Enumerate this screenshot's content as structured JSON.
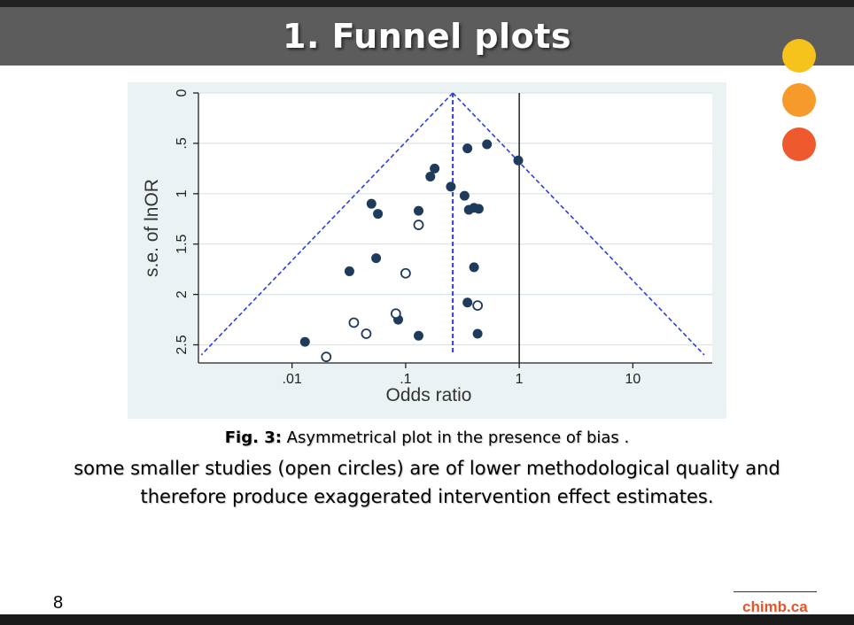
{
  "slide": {
    "title": "1. Funnel plots",
    "page_number": "8",
    "brand": "chimb.ca",
    "caption_fig_label": "Fig. 3:",
    "caption_fig_text": " Asymmetrical plot in the presence of bias .",
    "caption_line2": "some smaller studies (open circles) are of lower methodological quality and",
    "caption_line3": "therefore produce exaggerated intervention effect estimates."
  },
  "colors": {
    "title_bar": "#5c5c5c",
    "dot_yellow": "#f6c21c",
    "dot_orange": "#f59a2b",
    "dot_red": "#ee5a2e",
    "brand": "#e8542a",
    "closed_marker": "#1f3b5c",
    "funnel_line": "#2b3fe0"
  },
  "icons": [
    "yellow-circle-icon",
    "orange-circle-icon",
    "red-circle-icon"
  ],
  "chart_data": {
    "type": "scatter",
    "title": "",
    "xlabel": "Odds ratio",
    "ylabel": "s.e. of lnOR",
    "x_scale": "log",
    "xlim": [
      0.0015,
      50
    ],
    "ylim": [
      2.68,
      0
    ],
    "x_ticks": [
      {
        "value": 0.01,
        "label": ".01"
      },
      {
        "value": 0.1,
        "label": ".1"
      },
      {
        "value": 1,
        "label": "1"
      },
      {
        "value": 10,
        "label": "10"
      }
    ],
    "y_ticks": [
      {
        "value": 0,
        "label": "0"
      },
      {
        "value": 0.5,
        "label": ".5"
      },
      {
        "value": 1,
        "label": "1"
      },
      {
        "value": 1.5,
        "label": "1.5"
      },
      {
        "value": 2,
        "label": "2"
      },
      {
        "value": 2.5,
        "label": "2.5"
      }
    ],
    "grid": true,
    "pooled_estimate": 0.26,
    "null_line": 1,
    "funnel_bottom_se": 2.6,
    "series": [
      {
        "name": "closed",
        "marker": "filled-circle",
        "points": [
          [
            0.52,
            0.51
          ],
          [
            0.35,
            0.55
          ],
          [
            0.98,
            0.67
          ],
          [
            0.18,
            0.75
          ],
          [
            0.165,
            0.83
          ],
          [
            0.25,
            0.93
          ],
          [
            0.33,
            1.02
          ],
          [
            0.05,
            1.1
          ],
          [
            0.4,
            1.14
          ],
          [
            0.44,
            1.15
          ],
          [
            0.36,
            1.16
          ],
          [
            0.13,
            1.17
          ],
          [
            0.057,
            1.2
          ],
          [
            0.055,
            1.64
          ],
          [
            0.4,
            1.73
          ],
          [
            0.032,
            1.77
          ],
          [
            0.35,
            2.08
          ],
          [
            0.086,
            2.25
          ],
          [
            0.13,
            2.41
          ],
          [
            0.43,
            2.39
          ],
          [
            0.013,
            2.47
          ]
        ]
      },
      {
        "name": "open",
        "marker": "open-circle",
        "points": [
          [
            0.13,
            1.31
          ],
          [
            0.1,
            1.79
          ],
          [
            0.43,
            2.11
          ],
          [
            0.082,
            2.19
          ],
          [
            0.035,
            2.28
          ],
          [
            0.045,
            2.39
          ],
          [
            0.02,
            2.62
          ]
        ]
      }
    ]
  }
}
